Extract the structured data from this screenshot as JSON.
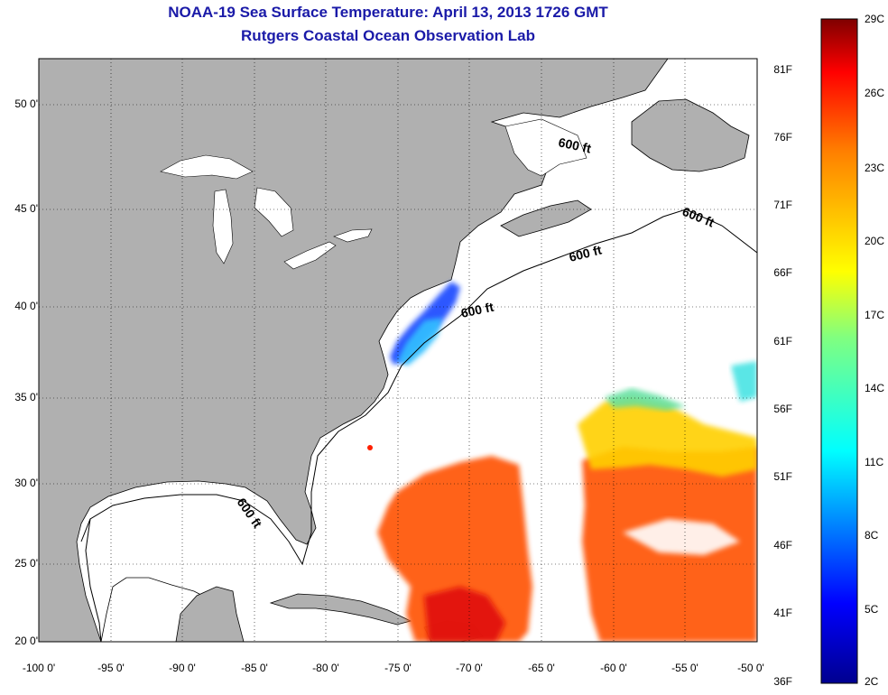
{
  "title": "NOAA-19 Sea Surface Temperature:  April 13, 2013 1726 GMT",
  "subtitle": "Rutgers Coastal Ocean Observation Lab",
  "lat_labels": [
    "50 0'",
    "45 0'",
    "40 0'",
    "35 0'",
    "30 0'",
    "25 0'",
    "20 0'"
  ],
  "lon_labels": [
    "-100 0'",
    "-95 0'",
    "-90 0'",
    "-85 0'",
    "-80 0'",
    "-75 0'",
    "-70 0'",
    "-65 0'",
    "-60 0'",
    "-55 0'",
    "-50 0'"
  ],
  "isobath_label": "600 ft",
  "colorbar": {
    "fahrenheit_labels": [
      "81F",
      "76F",
      "71F",
      "66F",
      "61F",
      "56F",
      "51F",
      "46F",
      "41F",
      "36F"
    ],
    "celsius_labels": [
      "29C",
      "26C",
      "23C",
      "20C",
      "17C",
      "14C",
      "11C",
      "8C",
      "5C",
      "2C"
    ],
    "colors": [
      "#7f0000",
      "#ff0000",
      "#ff8000",
      "#ffff00",
      "#80ff80",
      "#00ffff",
      "#0080ff",
      "#0000ff",
      "#00008f"
    ]
  },
  "map_colors": {
    "land": "#b0b0b0",
    "ocean": "#ffffff",
    "grid": "#000000"
  }
}
